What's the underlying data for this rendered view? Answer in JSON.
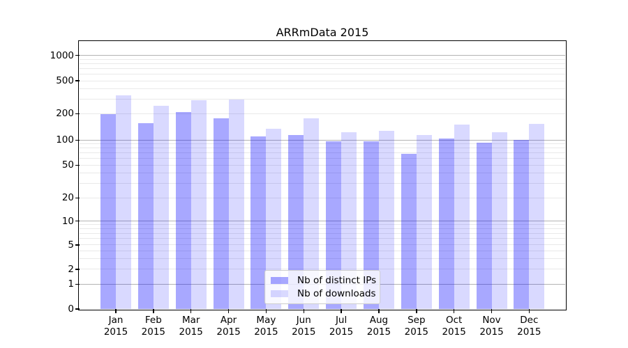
{
  "chart_data": {
    "type": "bar",
    "title": "ARRmData 2015",
    "xlabel": "",
    "ylabel": "",
    "y_scale": "symlog",
    "y_ticks": [
      0,
      1,
      2,
      5,
      10,
      20,
      50,
      100,
      200,
      500,
      1000
    ],
    "ylim": [
      0,
      1450
    ],
    "grid": "on",
    "categories": [
      "Jan 2015",
      "Feb 2015",
      "Mar 2015",
      "Apr 2015",
      "May 2015",
      "Jun 2015",
      "Jul 2015",
      "Aug 2015",
      "Sep 2015",
      "Oct 2015",
      "Nov 2015",
      "Dec 2015"
    ],
    "series": [
      {
        "name": "Nb of distinct IPs",
        "color_hex": "#a8a8fa",
        "color_rgba": "rgba(0,0,255,0.34)",
        "values": [
          199,
          157,
          210,
          176,
          110,
          114,
          97,
          97,
          69,
          104,
          93,
          101
        ]
      },
      {
        "name": "Nb of downloads",
        "color_hex": "#d9d9fa",
        "color_rgba": "rgba(0,0,255,0.15)",
        "values": [
          332,
          251,
          291,
          296,
          135,
          177,
          123,
          127,
          115,
          151,
          122,
          154
        ]
      }
    ],
    "legend": {
      "position": "lower center",
      "entries": [
        "Nb of distinct IPs",
        "Nb of downloads"
      ]
    }
  },
  "colors": {
    "background": "#ffffff",
    "spine": "#000000",
    "major_gridline": "#b3b3b3",
    "minor_gridline": "#e9e9e9",
    "text": "#000000"
  }
}
